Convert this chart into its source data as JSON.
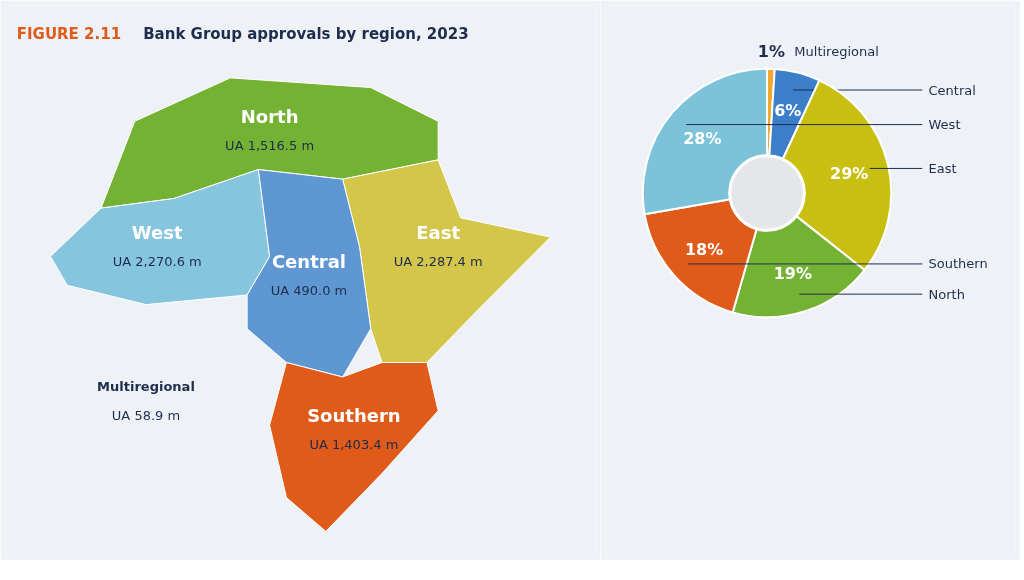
{
  "chart_data": [
    {
      "type": "other",
      "title": "FIGURE 2.11 Bank Group approvals by region, 2023",
      "categories": [
        "North",
        "West",
        "East",
        "Central",
        "Multiregional",
        "Southern"
      ],
      "value_labels": [
        "UA 1,516.5 m",
        "UA 2,270.6 m",
        "UA 2,287.4 m",
        "UA 490.0 m",
        "UA 58.9 m",
        "UA 1,403.4 m"
      ],
      "colors": [
        "#74b234",
        "#85c5de",
        "#d3c64a",
        "#5f97d3",
        null,
        "#e05a1a"
      ]
    },
    {
      "type": "donut",
      "categories": [
        "Multiregional",
        "Central",
        "East",
        "North",
        "Southern",
        "West"
      ],
      "values": [
        1,
        6,
        29,
        19,
        18,
        28
      ],
      "value_labels": [
        "1%",
        "6%",
        "29%",
        "19%",
        "18%",
        "28%"
      ],
      "colors": [
        "#f0a830",
        "#3c7fc8",
        "#c9bf12",
        "#74b234",
        "#e05a1a",
        "#7cc3da"
      ]
    }
  ]
}
